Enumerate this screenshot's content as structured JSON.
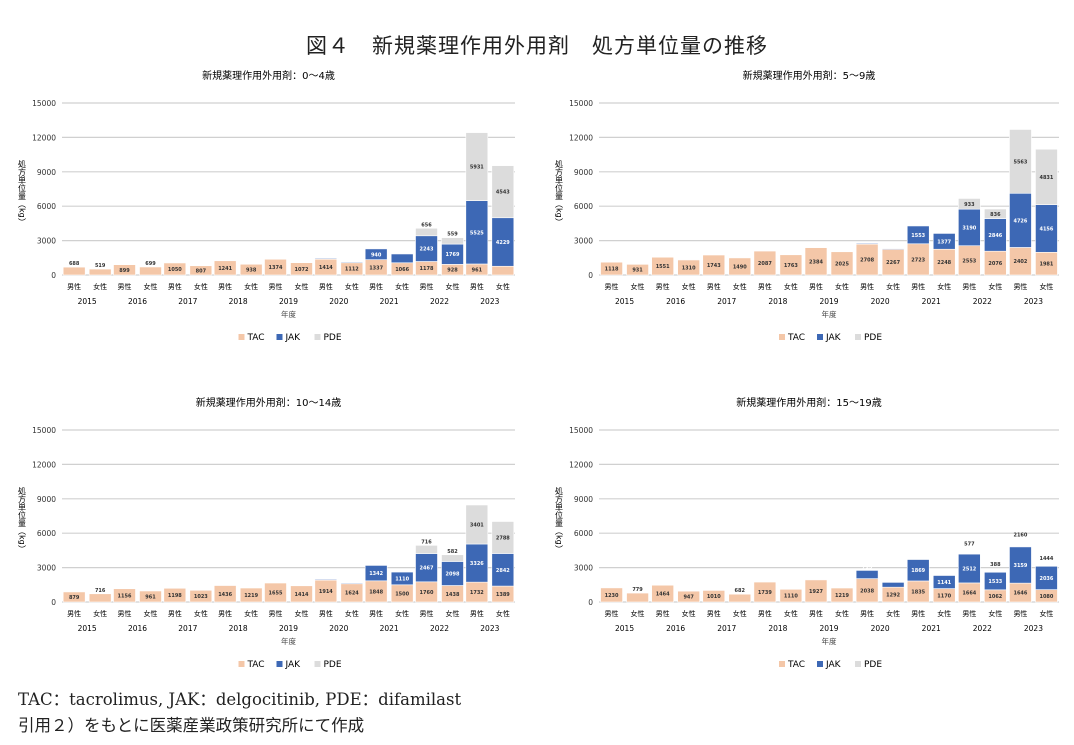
{
  "figure_title": "図４　新規薬理作用外用剤　処方単位量の推移",
  "notes": [
    "TAC：tacrolimus, JAK：delgocitinib, PDE：difamilast",
    "引用２）をもとに医薬産業政策研究所にて作成"
  ],
  "colors": {
    "TAC": "#f4c7a8",
    "JAK": "#3d68b5",
    "PDE": "#dcdcdc",
    "grid": "#d0d0d0"
  },
  "chart_data": [
    {
      "type": "bar",
      "stacked": true,
      "title": "新規薬理作用外用剤：0～4歳",
      "ylabel": "処方単位量（kg）",
      "xlabel": "年度",
      "ylim": [
        0,
        15000
      ],
      "yticks": [
        0,
        3000,
        6000,
        9000,
        12000,
        15000
      ],
      "grid": true,
      "legend": "bottom",
      "categories": [
        "2015",
        "2016",
        "2017",
        "2018",
        "2019",
        "2020",
        "2021",
        "2022",
        "2023"
      ],
      "subcategories": [
        "男性",
        "女性"
      ],
      "pde_visible": true,
      "series": [
        {
          "name": "TAC",
          "male": [
            688,
            899,
            1050,
            1241,
            1374,
            1414,
            1337,
            1178,
            961
          ],
          "female": [
            519,
            699,
            807,
            938,
            1072,
            1112,
            1066,
            928,
            764
          ]
        },
        {
          "name": "JAK",
          "male": [
            0,
            0,
            0,
            0,
            0,
            30,
            940,
            2243,
            5525
          ],
          "female": [
            0,
            0,
            0,
            0,
            0,
            20,
            768,
            1769,
            4229
          ]
        },
        {
          "name": "PDE",
          "male": [
            0,
            0,
            0,
            0,
            0,
            0,
            0,
            656,
            5931
          ],
          "female": [
            0,
            0,
            0,
            0,
            0,
            0,
            0,
            559,
            4543
          ]
        }
      ]
    },
    {
      "type": "bar",
      "stacked": true,
      "title": "新規薬理作用外用剤：5～9歳",
      "ylabel": "処方単位量（kg）",
      "xlabel": "年度",
      "ylim": [
        0,
        15000
      ],
      "yticks": [
        0,
        3000,
        6000,
        9000,
        12000,
        15000
      ],
      "grid": true,
      "legend": "bottom",
      "categories": [
        "2015",
        "2016",
        "2017",
        "2018",
        "2019",
        "2020",
        "2021",
        "2022",
        "2023"
      ],
      "subcategories": [
        "男性",
        "女性"
      ],
      "pde_visible": true,
      "series": [
        {
          "name": "TAC",
          "male": [
            1118,
            1551,
            1743,
            2087,
            2384,
            2708,
            2723,
            2553,
            2402
          ],
          "female": [
            931,
            1310,
            1490,
            1763,
            2025,
            2267,
            2248,
            2076,
            1981
          ]
        },
        {
          "name": "JAK",
          "male": [
            0,
            0,
            0,
            0,
            0,
            50,
            1553,
            3190,
            4726
          ],
          "female": [
            0,
            0,
            0,
            0,
            0,
            30,
            1377,
            2846,
            4156
          ]
        },
        {
          "name": "PDE",
          "male": [
            0,
            0,
            0,
            0,
            0,
            0,
            0,
            933,
            5563
          ],
          "female": [
            0,
            0,
            0,
            0,
            0,
            0,
            0,
            836,
            4831
          ]
        }
      ]
    },
    {
      "type": "bar",
      "stacked": true,
      "title": "新規薬理作用外用剤：10～14歳",
      "ylabel": "処方単位量（kg）",
      "xlabel": "年度",
      "ylim": [
        0,
        15000
      ],
      "yticks": [
        0,
        3000,
        6000,
        9000,
        12000,
        15000
      ],
      "grid": true,
      "legend": "bottom",
      "categories": [
        "2015",
        "2016",
        "2017",
        "2018",
        "2019",
        "2020",
        "2021",
        "2022",
        "2023"
      ],
      "subcategories": [
        "男性",
        "女性"
      ],
      "pde_visible": true,
      "series": [
        {
          "name": "TAC",
          "male": [
            879,
            1156,
            1198,
            1436,
            1655,
            1914,
            1848,
            1760,
            1732
          ],
          "female": [
            716,
            961,
            1023,
            1219,
            1414,
            1624,
            1500,
            1438,
            1389
          ]
        },
        {
          "name": "JAK",
          "male": [
            0,
            0,
            0,
            0,
            0,
            60,
            1342,
            2467,
            3326
          ],
          "female": [
            0,
            0,
            0,
            0,
            0,
            30,
            1110,
            2098,
            2842
          ]
        },
        {
          "name": "PDE",
          "male": [
            0,
            0,
            0,
            0,
            0,
            0,
            0,
            716,
            3401
          ],
          "female": [
            0,
            0,
            0,
            0,
            0,
            0,
            0,
            582,
            2788
          ]
        }
      ]
    },
    {
      "type": "bar",
      "stacked": true,
      "title": "新規薬理作用外用剤：15～19歳",
      "ylabel": "処方単位量（kg）",
      "xlabel": "年度",
      "ylim": [
        0,
        15000
      ],
      "yticks": [
        0,
        3000,
        6000,
        9000,
        12000,
        15000
      ],
      "grid": true,
      "legend": "bottom",
      "categories": [
        "2015",
        "2016",
        "2017",
        "2018",
        "2019",
        "2020",
        "2021",
        "2022",
        "2023"
      ],
      "subcategories": [
        "男性",
        "女性"
      ],
      "pde_visible": false,
      "series": [
        {
          "name": "TAC",
          "male": [
            1230,
            1464,
            1010,
            1739,
            1927,
            2038,
            1835,
            1664,
            1646
          ],
          "female": [
            779,
            947,
            682,
            1110,
            1219,
            1292,
            1170,
            1062,
            1080
          ]
        },
        {
          "name": "JAK",
          "male": [
            0,
            0,
            0,
            0,
            0,
            715,
            1869,
            2512,
            3159
          ],
          "female": [
            0,
            0,
            0,
            0,
            0,
            419,
            1141,
            1533,
            2036
          ]
        },
        {
          "name": "PDE",
          "male": [
            0,
            0,
            0,
            0,
            0,
            0,
            0,
            577,
            2160
          ],
          "female": [
            0,
            0,
            0,
            0,
            0,
            0,
            0,
            388,
            1444
          ]
        }
      ]
    }
  ]
}
